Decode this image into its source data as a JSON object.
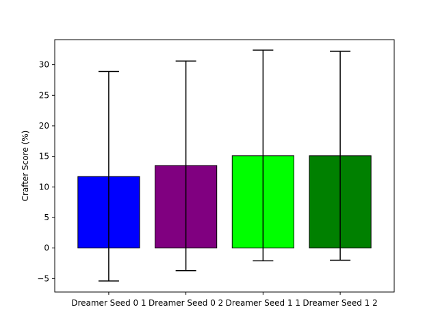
{
  "chart_data": {
    "type": "bar",
    "title": "",
    "xlabel": "",
    "ylabel": "Crafter Score (%)",
    "categories": [
      "Dreamer Seed 0 1",
      "Dreamer Seed 0 2",
      "Dreamer Seed 1 1",
      "Dreamer Seed 1 2"
    ],
    "values": [
      11.7,
      13.5,
      15.1,
      15.1
    ],
    "error_low": [
      -5.4,
      -3.7,
      -2.1,
      -2.0
    ],
    "error_high": [
      28.9,
      30.6,
      32.4,
      32.2
    ],
    "colors": [
      "#0000ff",
      "#800080",
      "#00ff00",
      "#008000"
    ],
    "ylim": [
      -7.2,
      34.1
    ],
    "yticks": [
      -5,
      0,
      5,
      10,
      15,
      20,
      25,
      30
    ],
    "grid": false,
    "legend": "none"
  }
}
